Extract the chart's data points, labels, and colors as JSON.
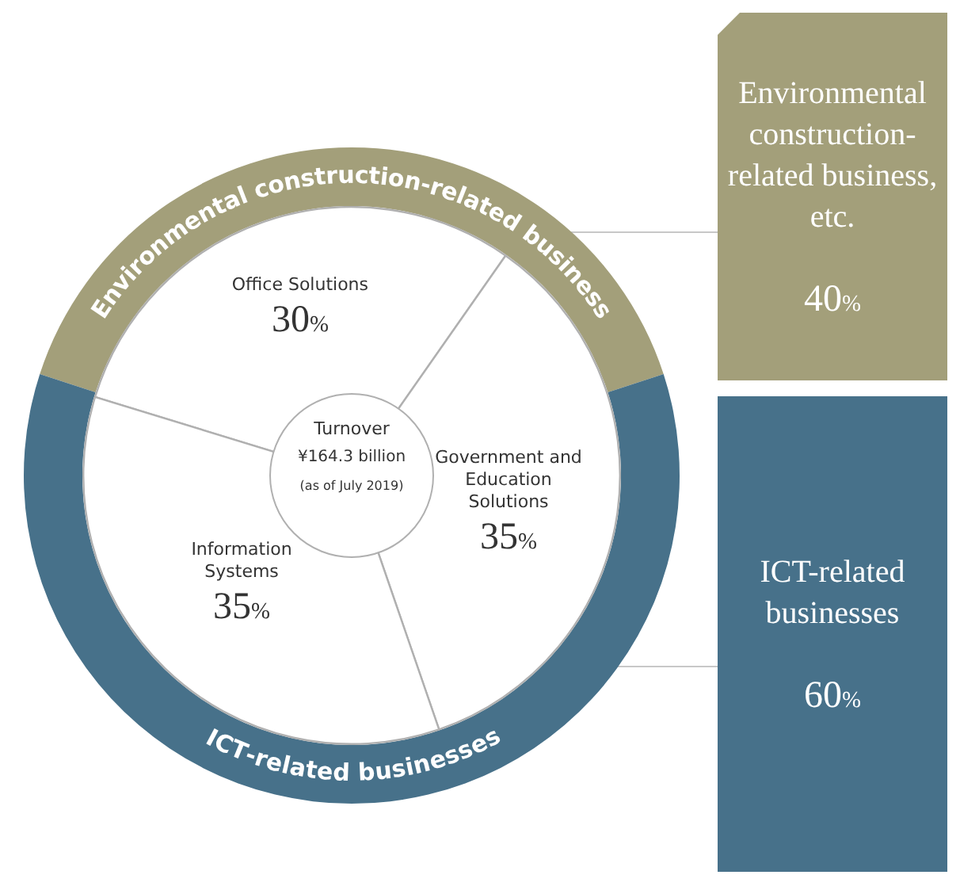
{
  "chart_data": [
    {
      "type": "donut",
      "categories": [
        "Environmental construction-related business, etc.",
        "ICT-related businesses"
      ],
      "values": [
        40,
        60
      ],
      "colors": [
        "#a39f7a",
        "#47718a"
      ],
      "value_labels": [
        "40%",
        "60%"
      ],
      "annotations": [
        "Environmental construction-related business",
        "ICT-related businesses"
      ]
    },
    {
      "type": "donut",
      "title": "Turnover",
      "subtitle": "¥164.3 billion",
      "annotations": [
        "(as of July 2019)"
      ],
      "categories": [
        "Office Solutions",
        "Government and Education Solutions",
        "Information Systems"
      ],
      "values": [
        30,
        35,
        35
      ],
      "colors": [
        "#ffffff",
        "#ffffff",
        "#ffffff"
      ],
      "value_labels": [
        "30%",
        "35%",
        "35%"
      ]
    }
  ]
}
